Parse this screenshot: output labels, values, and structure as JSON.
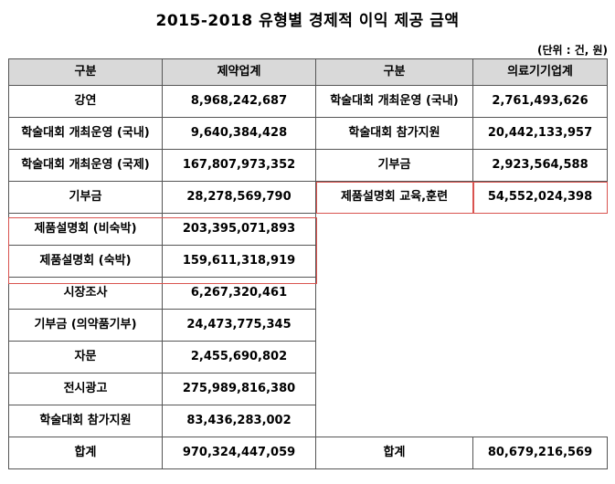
{
  "title": "2015-2018 유형별 경제적 이익 제공 금액",
  "unit": "(단위 : 건, 원)",
  "headers": [
    "구분",
    "제약업계",
    "구분",
    "의료기기업계"
  ],
  "rows": [
    {
      "l_label": "강연",
      "l_value": "8,968,242,687",
      "r_label": "학술대회 개최운영 (국내)",
      "r_value": "2,761,493,626"
    },
    {
      "l_label": "학술대회 개최운영 (국내)",
      "l_value": "9,640,384,428",
      "r_label": "학술대회 참가지원",
      "r_value": "20,442,133,957"
    },
    {
      "l_label": "학술대회 개최운영 (국제)",
      "l_value": "167,807,973,352",
      "r_label": "기부금",
      "r_value": "2,923,564,588"
    },
    {
      "l_label": "기부금",
      "l_value": "28,278,569,790",
      "r_label": "제품설명회 교육,훈련",
      "r_value": "54,552,024,398"
    },
    {
      "l_label": "제품설명회 (비숙박)",
      "l_value": "203,395,071,893"
    },
    {
      "l_label": "제품설명회 (숙박)",
      "l_value": "159,611,318,919"
    },
    {
      "l_label": "시장조사",
      "l_value": "6,267,320,461"
    },
    {
      "l_label": "기부금 (의약품기부)",
      "l_value": "24,473,775,345"
    },
    {
      "l_label": "자문",
      "l_value": "2,455,690,802"
    },
    {
      "l_label": "전시광고",
      "l_value": "275,989,816,380"
    },
    {
      "l_label": "학술대회 참가지원",
      "l_value": "83,436,283,002"
    }
  ],
  "total": {
    "l_label": "합계",
    "l_value": "970,324,447,059",
    "r_label": "합계",
    "r_value": "80,679,216,569"
  }
}
